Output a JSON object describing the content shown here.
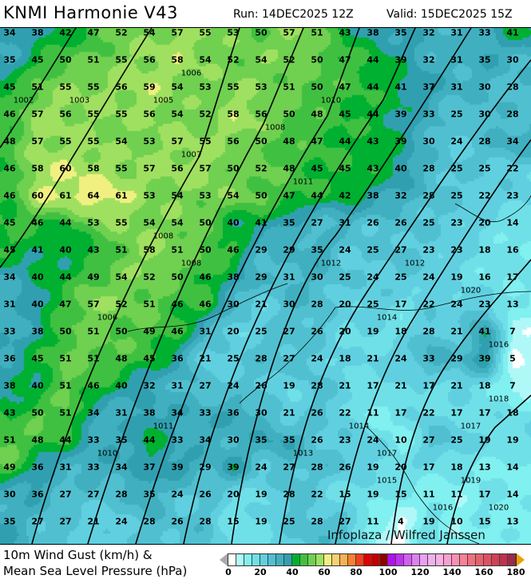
{
  "header": {
    "title": "KNMI Harmonie V43",
    "run": "Run: 14DEC2025 12Z",
    "valid": "Valid: 15DEC2025 15Z"
  },
  "legend": {
    "line1": "10m Wind Gust (km/h) &",
    "line2": "Mean Sea Level Pressure (hPa)",
    "ticks": [
      "0",
      "20",
      "40",
      "60",
      "80",
      "100",
      "120",
      "140",
      "160",
      "180"
    ],
    "scale_min": 0,
    "scale_max": 180,
    "step": 5,
    "colors": [
      "#ffffff",
      "#b0f8f8",
      "#80f0f0",
      "#70e0e8",
      "#60d0e0",
      "#50c0d0",
      "#40b0c0",
      "#30a0b0",
      "#00b030",
      "#40c040",
      "#70d050",
      "#a0e060",
      "#f0f080",
      "#f8d070",
      "#f8b050",
      "#f88030",
      "#f04020",
      "#e00000",
      "#c00000",
      "#900000",
      "#b010f0",
      "#c030f0",
      "#d060f0",
      "#e080f0",
      "#e8a0f0",
      "#f0b0f0",
      "#f8b0e0",
      "#f8a0d0",
      "#f890b0",
      "#f88098",
      "#f07080",
      "#e86070",
      "#e05060",
      "#d04058",
      "#c03050",
      "#a02848"
    ],
    "under_color": "#aaaaaa",
    "over_color": "#f0a000"
  },
  "watermark": "Infoplaza / Wilfred Janssen",
  "gust_grid": [
    "34 38 42 47 52 54 57 55 53 50 57 51 43 38 35 32 31 33 41",
    "35 45 50 51 55 56 58 54 52 54 52 50 47 44 39 32 31 35 30",
    "45 51 55 55 56 59 54 53 55 53 51 50 47 44 41 37 31 30 28",
    "46 57 56 55 55 56 54 52 58 56 50 48 45 44 39 33 25 30 28",
    "48 57 55 55 54 53 57 55 56 50 48 47 44 43 39 30 24 28 34",
    "46 58 60 58 55 57 56 57 50 52 48 45 45 43 40 28 25 25 22",
    "46 60 61 64 61 53 54 53 54 50 47 44 42 38 32 28 25 22 23",
    "45 46 44 53 55 54 54 50 40 41 35 27 31 26 26 25 23 20 14",
    "45 41 40 43 51 58 51 50 46 29 29 35 24 25 27 23 23 18 16",
    "34 40 44 49 54 52 50 46 38 29 31 30 25 24 25 24 19 16 17",
    "31 40 47 57 52 51 46 46 30 21 30 28 20 25 17 22 24 23 13",
    "33 38 50 51 50 49 46 31 20 25 27 26 20 19 18 28 21 41 7",
    "36 45 51 51 48 45 36 21 25 28 27 24 18 21 24 33 29 39 5",
    "38 40 51 46 40 32 31 27 24 26 19 28 21 17 21 17 21 18 7",
    "43 50 51 34 31 38 34 33 36 30 21 26 22 11 17 22 17 17 18",
    "51 48 44 33 35 44 33 34 30 35 35 26 23 24 10 27 25 19 19",
    "49 36 31 33 34 37 39 29 39 24 27 28 26 19 20 17 18 13 14",
    "30 36 27 27 28 35 24 26 20 19 28 22 15 19 15 11 11 17 14",
    "35 27 27 21 24 28 26 28 15 19 25 28 27 11 4 19 10 15 13"
  ],
  "isobar_labels": [
    "1002",
    "1003",
    "1005",
    "1006",
    "1006",
    "1007",
    "1008",
    "1008",
    "1008",
    "1010",
    "1010",
    "1011",
    "1011",
    "1012",
    "1012",
    "1013",
    "1014",
    "1014",
    "1015",
    "1016",
    "1016",
    "1017",
    "1017",
    "1018",
    "1019",
    "1020",
    "1020"
  ]
}
